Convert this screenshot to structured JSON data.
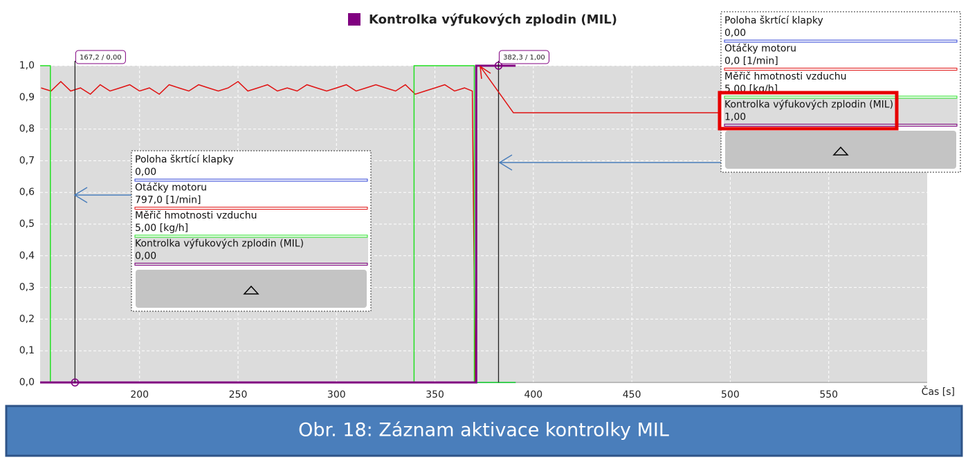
{
  "chart_data": {
    "type": "line",
    "title": "Kontrolka výfukových zplodin (MIL)",
    "xlabel": "Čas [s]",
    "caption": "Obr. 18: Záznam aktivace kontrolky MIL",
    "xlim": [
      149.5,
      600
    ],
    "ylim": [
      0,
      1
    ],
    "xticks": [
      200,
      250,
      300,
      350,
      400,
      450,
      500,
      550
    ],
    "yticks": [
      {
        "value": 0,
        "label": "0,0"
      },
      {
        "value": 0.1,
        "label": "0,1"
      },
      {
        "value": 0.2,
        "label": "0,2"
      },
      {
        "value": 0.3,
        "label": "0,3"
      },
      {
        "value": 0.4,
        "label": "0,4"
      },
      {
        "value": 0.5,
        "label": "0,5"
      },
      {
        "value": 0.6,
        "label": "0,6"
      },
      {
        "value": 0.7,
        "label": "0,7"
      },
      {
        "value": 0.8,
        "label": "0,8"
      },
      {
        "value": 0.9,
        "label": "0,9"
      },
      {
        "value": 1,
        "label": "1,0"
      }
    ],
    "grid": true,
    "series": [
      {
        "name": "Poloha škrtící klapky",
        "color": "#2b3fd6",
        "x": [
          149.5,
          391
        ],
        "values": [
          0,
          0
        ]
      },
      {
        "name": "Otáčky motoru",
        "color": "#e01010",
        "x": [
          150,
          155,
          160,
          165,
          170,
          175,
          180,
          185,
          190,
          195,
          200,
          205,
          210,
          215,
          220,
          225,
          230,
          235,
          240,
          245,
          250,
          255,
          260,
          265,
          270,
          275,
          280,
          285,
          290,
          295,
          300,
          305,
          310,
          315,
          320,
          325,
          330,
          335,
          340,
          345,
          350,
          355,
          360,
          365,
          369,
          370.5,
          371
        ],
        "values": [
          0.93,
          0.92,
          0.95,
          0.92,
          0.93,
          0.91,
          0.94,
          0.92,
          0.93,
          0.94,
          0.92,
          0.93,
          0.91,
          0.94,
          0.93,
          0.92,
          0.94,
          0.93,
          0.92,
          0.93,
          0.95,
          0.92,
          0.93,
          0.94,
          0.92,
          0.93,
          0.92,
          0.94,
          0.93,
          0.92,
          0.93,
          0.94,
          0.92,
          0.93,
          0.94,
          0.93,
          0.92,
          0.94,
          0.91,
          0.92,
          0.93,
          0.94,
          0.92,
          0.93,
          0.92,
          0,
          0
        ]
      },
      {
        "name": "Měřič hmotnosti vzduchu",
        "color": "#22e022",
        "x": [
          149.5,
          154.7,
          154.7,
          339.4,
          339.4,
          370,
          370,
          391
        ],
        "values": [
          1,
          1,
          0,
          0,
          1,
          1,
          0,
          0
        ]
      },
      {
        "name": "Kontrolka výfukových zplodin (MIL)",
        "color": "#800080",
        "x": [
          149.5,
          371,
          371,
          391
        ],
        "values": [
          0,
          0,
          1,
          1
        ]
      }
    ],
    "cursors": [
      {
        "x": 167.2,
        "y": 0,
        "label": "167,2 / 0,00",
        "readouts": [
          "0,00",
          "797,0 [1/min]",
          "5,00 [kg/h]",
          "0,00"
        ]
      },
      {
        "x": 382.3,
        "y": 1,
        "label": "382,3 / 1,00",
        "readouts": [
          "0,00",
          "0,0 [1/min]",
          "5,00 [kg/h]",
          "1,00"
        ]
      }
    ]
  }
}
